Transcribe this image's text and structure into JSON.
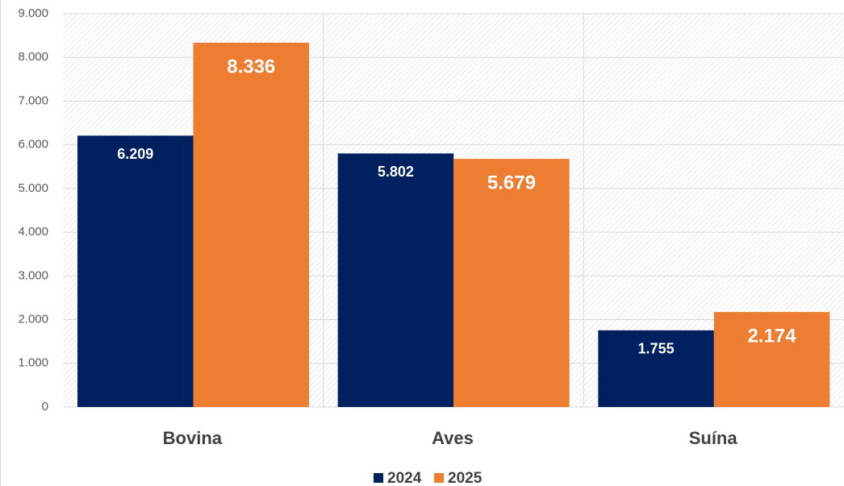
{
  "chart_data": {
    "type": "bar",
    "categories": [
      "Bovina",
      "Aves",
      "Suína"
    ],
    "series": [
      {
        "name": "2024",
        "color": "#002060",
        "values": [
          6209,
          5802,
          1755
        ],
        "value_labels": [
          "6.209",
          "5.802",
          "1.755"
        ]
      },
      {
        "name": "2025",
        "color": "#ed7d31",
        "values": [
          8336,
          5679,
          2174
        ],
        "value_labels": [
          "8.336",
          "5.679",
          "2.174"
        ]
      }
    ],
    "ylim": [
      0,
      9000
    ],
    "yticks": [
      {
        "value": 0,
        "label": "0"
      },
      {
        "value": 1000,
        "label": "1.000"
      },
      {
        "value": 2000,
        "label": "2.000"
      },
      {
        "value": 3000,
        "label": "3.000"
      },
      {
        "value": 4000,
        "label": "4.000"
      },
      {
        "value": 5000,
        "label": "5.000"
      },
      {
        "value": 6000,
        "label": "6.000"
      },
      {
        "value": 7000,
        "label": "7.000"
      },
      {
        "value": 8000,
        "label": "8.000"
      },
      {
        "value": 9000,
        "label": "9.000"
      }
    ],
    "grid": true,
    "legend": "bottom"
  }
}
